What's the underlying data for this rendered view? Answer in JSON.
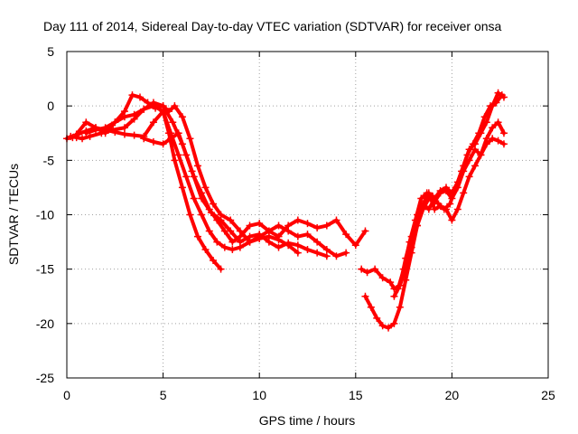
{
  "chart_data": {
    "type": "scatter",
    "title": "Day 111 of 2014, Sidereal Day-to-day VTEC variation (SDTVAR) for receiver onsa",
    "xlabel": "GPS time / hours",
    "ylabel": "SDTVAR / TECUs",
    "xlim": [
      0,
      25
    ],
    "ylim": [
      -25,
      5
    ],
    "xticks": [
      "0",
      "5",
      "10",
      "15",
      "20",
      "25"
    ],
    "yticks": [
      "5",
      "0",
      "-5",
      "-10",
      "-15",
      "-20",
      "-25"
    ],
    "grid": true,
    "marker": "+",
    "color": "#ff0000",
    "series": [
      {
        "x": [
          0,
          0.3,
          0.6,
          1.0,
          1.5,
          2.0,
          2.5,
          3.0,
          3.5,
          4.0,
          4.5,
          5.0,
          5.3,
          5.6,
          6.0,
          6.4,
          6.8,
          7.2,
          7.6,
          8.0
        ],
        "y": [
          -3.0,
          -2.9,
          -2.6,
          -2.3,
          -2.0,
          -2.2,
          -2.4,
          -2.6,
          -2.7,
          -2.8,
          -1.5,
          -0.5,
          -2.5,
          -5.0,
          -7.5,
          -10.0,
          -12.0,
          -13.2,
          -14.2,
          -15.0
        ]
      },
      {
        "x": [
          0.2,
          0.5,
          0.8,
          1.2,
          1.8,
          2.4,
          3.0,
          3.5,
          4.0,
          4.5,
          5.0,
          5.4,
          5.8,
          6.2,
          6.6,
          7.0,
          7.4,
          7.8,
          8.2,
          8.6,
          9.0,
          9.5,
          10.0,
          10.5,
          11.0,
          11.5,
          12.0
        ],
        "y": [
          -2.8,
          -2.9,
          -3.0,
          -2.8,
          -2.5,
          -2.2,
          -2.0,
          -1.2,
          -0.3,
          0.0,
          -0.5,
          -2.5,
          -4.5,
          -6.5,
          -8.5,
          -10.0,
          -11.5,
          -12.5,
          -13.0,
          -13.2,
          -13.0,
          -12.5,
          -12.2,
          -12.0,
          -12.3,
          -12.8,
          -13.5
        ]
      },
      {
        "x": [
          0.5,
          1.0,
          1.5,
          2.0,
          2.5,
          3.0,
          3.4,
          3.8,
          4.2,
          4.6,
          5.0,
          5.5,
          6.0,
          6.5,
          7.0,
          7.5,
          8.0,
          8.5,
          9.0,
          9.5,
          10.0,
          10.5,
          11.0,
          11.5,
          12.0,
          12.5,
          13.0,
          13.5
        ],
        "y": [
          -2.6,
          -1.5,
          -2.0,
          -2.5,
          -1.5,
          -0.5,
          1.0,
          0.8,
          0.3,
          -0.2,
          0.0,
          -1.5,
          -3.5,
          -6.0,
          -8.5,
          -9.8,
          -10.5,
          -11.5,
          -12.5,
          -12.0,
          -11.8,
          -12.5,
          -13.0,
          -12.6,
          -12.8,
          -13.2,
          -13.5,
          -13.8
        ]
      },
      {
        "x": [
          1.0,
          1.5,
          2.0,
          2.5,
          3.0,
          3.5,
          4.0,
          4.5,
          5.0,
          5.3,
          5.6,
          6.0,
          6.4,
          6.8,
          7.2,
          7.6,
          8.0,
          8.5,
          9.0,
          9.5,
          10.0,
          10.5,
          11.0,
          11.5,
          12.0,
          12.5,
          13.0,
          13.5,
          14.0,
          14.5
        ],
        "y": [
          -2.5,
          -2.2,
          -2.0,
          -1.5,
          -1.0,
          -0.8,
          -0.3,
          0.3,
          0.0,
          -0.5,
          0.0,
          -1.0,
          -3.0,
          -5.5,
          -7.5,
          -9.0,
          -10.0,
          -10.5,
          -11.5,
          -12.5,
          -12.0,
          -11.5,
          -11.0,
          -11.5,
          -12.0,
          -11.8,
          -12.5,
          -13.2,
          -13.8,
          -13.5
        ]
      },
      {
        "x": [
          4.0,
          4.5,
          5.0,
          5.4,
          5.8,
          6.2,
          6.6,
          7.0,
          7.4,
          7.8,
          8.2,
          8.6,
          9.0,
          9.5,
          10.0,
          10.5,
          11.0,
          11.5,
          12.0,
          12.5,
          13.0,
          13.5,
          14.0,
          14.5,
          15.0,
          15.5
        ],
        "y": [
          -3.0,
          -3.3,
          -3.5,
          -3.0,
          -2.5,
          -4.5,
          -6.5,
          -8.0,
          -9.5,
          -10.5,
          -11.5,
          -12.5,
          -12.0,
          -11.0,
          -10.8,
          -11.5,
          -12.0,
          -11.0,
          -10.5,
          -10.8,
          -11.2,
          -11.0,
          -10.5,
          -11.8,
          -12.8,
          -11.5
        ]
      },
      {
        "x": [
          15.3,
          15.6,
          16.0,
          16.4,
          16.8,
          17.0,
          17.3,
          17.6,
          17.9,
          18.2,
          18.5,
          18.8,
          19.1,
          19.4,
          19.7,
          20.0,
          20.3,
          20.6,
          20.9,
          21.2,
          21.5,
          21.8,
          22.1,
          22.4,
          22.7
        ],
        "y": [
          -15.0,
          -15.3,
          -15.0,
          -15.8,
          -16.2,
          -16.8,
          -16.5,
          -15.0,
          -13.0,
          -11.0,
          -9.5,
          -8.5,
          -8.8,
          -8.0,
          -7.8,
          -8.5,
          -7.5,
          -6.0,
          -5.0,
          -4.0,
          -4.5,
          -3.5,
          -3.0,
          -3.2,
          -3.5
        ]
      },
      {
        "x": [
          15.5,
          15.8,
          16.1,
          16.4,
          16.7,
          17.0,
          17.3,
          17.6,
          17.9,
          18.2,
          18.5,
          18.8,
          19.1,
          19.4,
          19.7,
          20.0,
          20.3,
          20.6,
          20.9,
          21.2,
          21.5,
          21.8,
          22.1,
          22.4,
          22.7
        ],
        "y": [
          -17.5,
          -18.5,
          -19.5,
          -20.2,
          -20.4,
          -20.0,
          -18.5,
          -16.0,
          -13.5,
          -11.0,
          -9.0,
          -8.0,
          -9.5,
          -9.2,
          -9.5,
          -10.5,
          -9.5,
          -8.0,
          -6.5,
          -5.5,
          -4.5,
          -3.0,
          -2.0,
          -1.5,
          -2.5
        ]
      },
      {
        "x": [
          17.0,
          17.3,
          17.6,
          17.9,
          18.2,
          18.5,
          18.8,
          19.1,
          19.4,
          19.7,
          20.0,
          20.3,
          20.6,
          20.9,
          21.2,
          21.5,
          21.8,
          22.1,
          22.4,
          22.7
        ],
        "y": [
          -17.5,
          -16.5,
          -14.0,
          -12.0,
          -10.0,
          -9.0,
          -9.5,
          -8.5,
          -7.8,
          -7.5,
          -8.0,
          -7.0,
          -5.5,
          -4.0,
          -3.5,
          -2.5,
          -1.5,
          0.0,
          1.2,
          0.8
        ]
      },
      {
        "x": [
          17.2,
          17.5,
          17.8,
          18.1,
          18.4,
          18.7,
          19.0,
          19.3,
          19.6,
          19.9,
          20.2,
          20.5,
          20.8,
          21.1,
          21.4,
          21.7,
          22.0,
          22.3,
          22.6
        ],
        "y": [
          -16.8,
          -15.0,
          -12.5,
          -10.5,
          -8.5,
          -8.0,
          -8.3,
          -9.0,
          -9.5,
          -9.0,
          -7.5,
          -6.0,
          -4.5,
          -3.5,
          -2.5,
          -1.0,
          0.0,
          0.3,
          1.0
        ]
      }
    ]
  }
}
